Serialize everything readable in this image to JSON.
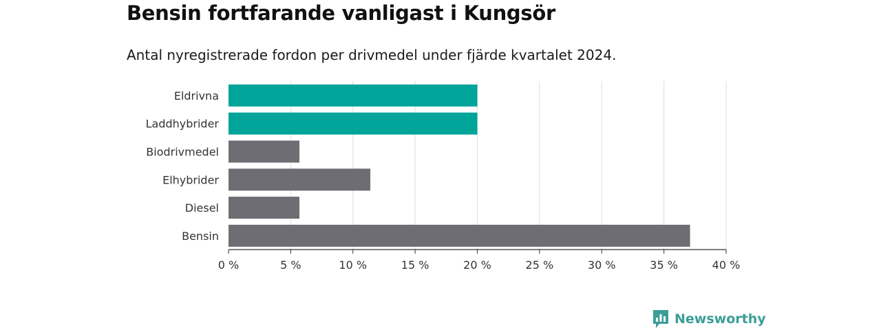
{
  "chart_data": {
    "type": "bar",
    "orientation": "horizontal",
    "title": "Bensin fortfarande vanligast i Kungsör",
    "subtitle": "Antal nyregistrerade fordon per drivmedel under fjärde kvartalet 2024.",
    "categories": [
      "Eldrivna",
      "Laddhybrider",
      "Biodrivmedel",
      "Elhybrider",
      "Diesel",
      "Bensin"
    ],
    "values": [
      20,
      20,
      5.7,
      11.4,
      5.7,
      37.1
    ],
    "xlim": [
      0,
      40
    ],
    "xticks": [
      0,
      5,
      10,
      15,
      20,
      25,
      30,
      35,
      40
    ],
    "tick_suffix": " %",
    "grid": true,
    "colors": {
      "highlight": "#00a499",
      "default": "#6e6d73"
    },
    "highlighted": [
      "Eldrivna",
      "Laddhybrider"
    ]
  },
  "brand": {
    "name": "Newsworthy",
    "icon": "newsworthy-logo-icon"
  }
}
